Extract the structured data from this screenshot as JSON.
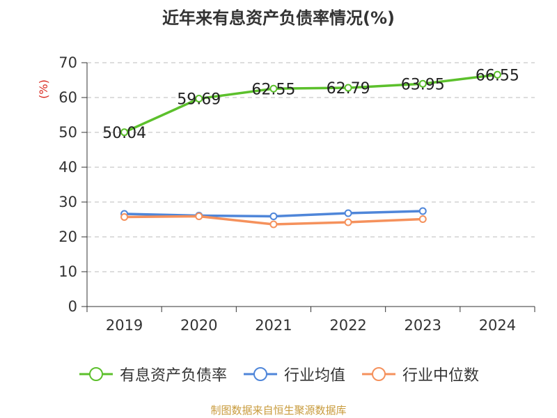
{
  "title": "近年来有息资产负债率情况(%)",
  "source": "制图数据来自恒生聚源数据库",
  "chart_data": {
    "type": "line",
    "ylabel": "(%)",
    "xlabel": "",
    "categories": [
      "2019",
      "2020",
      "2021",
      "2022",
      "2023",
      "2024"
    ],
    "ylim": [
      0,
      70
    ],
    "yticks": [
      0,
      10,
      20,
      30,
      40,
      50,
      60,
      70
    ],
    "grid": true,
    "legend_position": "bottom",
    "series": [
      {
        "name": "有息资产负债率",
        "color": "#5cc02c",
        "values": [
          50.04,
          59.69,
          62.55,
          62.79,
          63.95,
          66.55
        ],
        "labels": [
          "50.04",
          "59.69",
          "62.55",
          "62.79",
          "63.95",
          "66.55"
        ]
      },
      {
        "name": "行业均值",
        "color": "#4f86d9",
        "values": [
          26.6,
          26.1,
          25.9,
          26.8,
          27.4,
          null
        ]
      },
      {
        "name": "行业中位数",
        "color": "#f5915c",
        "values": [
          25.7,
          25.9,
          23.6,
          24.2,
          25.1,
          null
        ]
      }
    ]
  }
}
